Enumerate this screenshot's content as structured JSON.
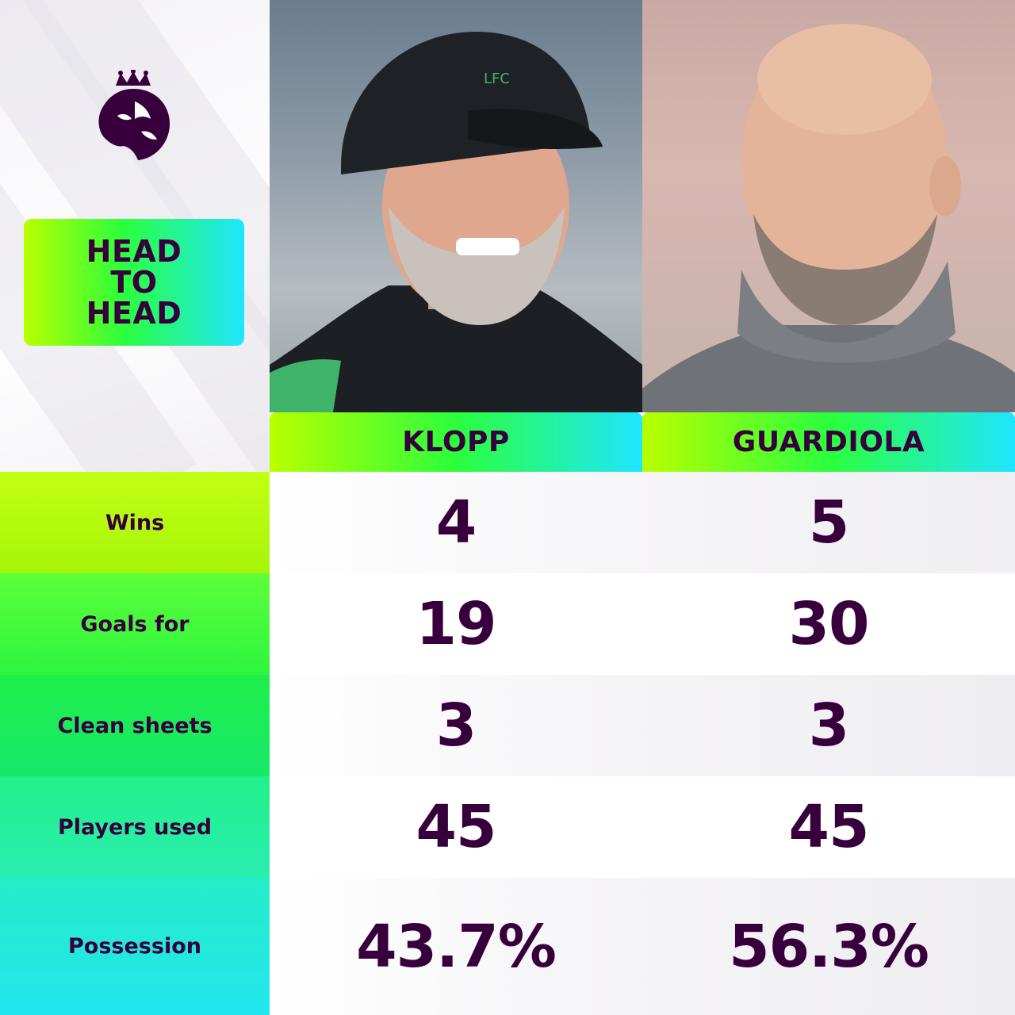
{
  "header": {
    "badge_lines": [
      "HEAD",
      "TO",
      "HEAD"
    ]
  },
  "logo": {
    "icon": "premier-league-lion-icon"
  },
  "managers": [
    {
      "name": "KLOPP",
      "photo": "manager-photo-klopp"
    },
    {
      "name": "GUARDIOLA",
      "photo": "manager-photo-guardiola"
    }
  ],
  "stats": [
    {
      "label": "Wins",
      "klopp": "4",
      "guardiola": "5"
    },
    {
      "label": "Goals for",
      "klopp": "19",
      "guardiola": "30"
    },
    {
      "label": "Clean sheets",
      "klopp": "3",
      "guardiola": "3"
    },
    {
      "label": "Players used",
      "klopp": "45",
      "guardiola": "45"
    },
    {
      "label": "Possession",
      "klopp": "43.7%",
      "guardiola": "56.3%"
    }
  ],
  "colors": {
    "primary_text": "#37003c",
    "accent_lime": "#b9ff00",
    "accent_green": "#2bff3c",
    "accent_cyan": "#1ee6ff"
  }
}
